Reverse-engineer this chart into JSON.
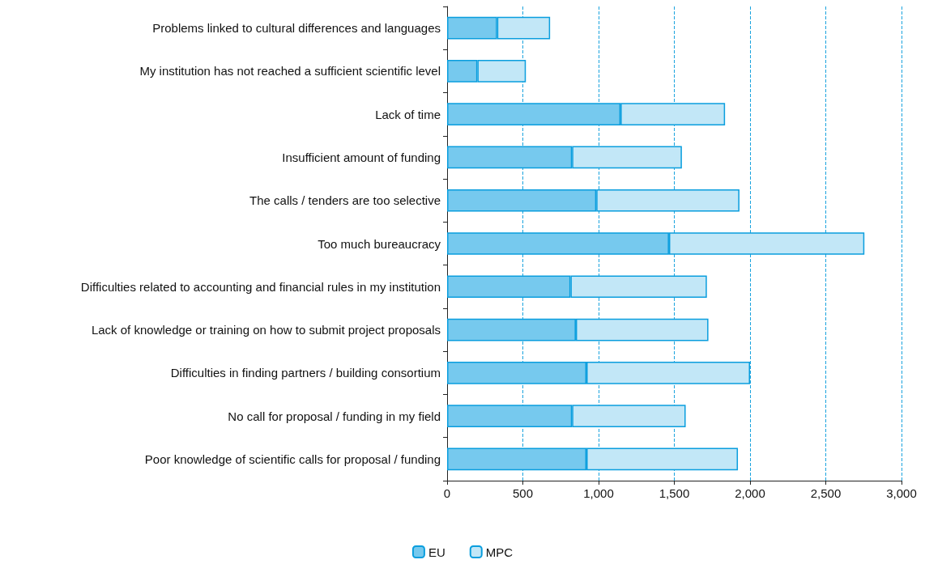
{
  "chart_data": {
    "type": "bar",
    "orientation": "horizontal",
    "stacked": true,
    "categories": [
      "Problems linked to cultural differences and languages",
      "My institution has not reached a sufficient scientific level",
      "Lack of time",
      "Insufficient amount of funding",
      "The calls / tenders are too selective",
      "Too much bureaucracy",
      "Difficulties related to accounting and financial rules in my institution",
      "Lack of knowledge or training on how to submit project proposals",
      "Difficulties in finding partners / building consortium",
      "No call for proposal / funding in my field",
      "Poor knowledge of scientific calls for proposal / funding"
    ],
    "series": [
      {
        "name": "EU",
        "color": "#76c9ee",
        "values": [
          330,
          200,
          1145,
          825,
          985,
          1465,
          815,
          850,
          920,
          825,
          920
        ]
      },
      {
        "name": "MPC",
        "color": "#c2e7f7",
        "values": [
          350,
          320,
          690,
          725,
          945,
          1290,
          900,
          875,
          1080,
          750,
          1000
        ]
      }
    ],
    "xlim": [
      0,
      3000
    ],
    "xticks": [
      {
        "value": 0,
        "label": "0"
      },
      {
        "value": 500,
        "label": "500"
      },
      {
        "value": 1000,
        "label": "1,000"
      },
      {
        "value": 1500,
        "label": "1,500"
      },
      {
        "value": 2000,
        "label": "2,000"
      },
      {
        "value": 2500,
        "label": "2,500"
      },
      {
        "value": 3000,
        "label": "3,000"
      }
    ],
    "grid": "x",
    "legend": "bottom"
  }
}
